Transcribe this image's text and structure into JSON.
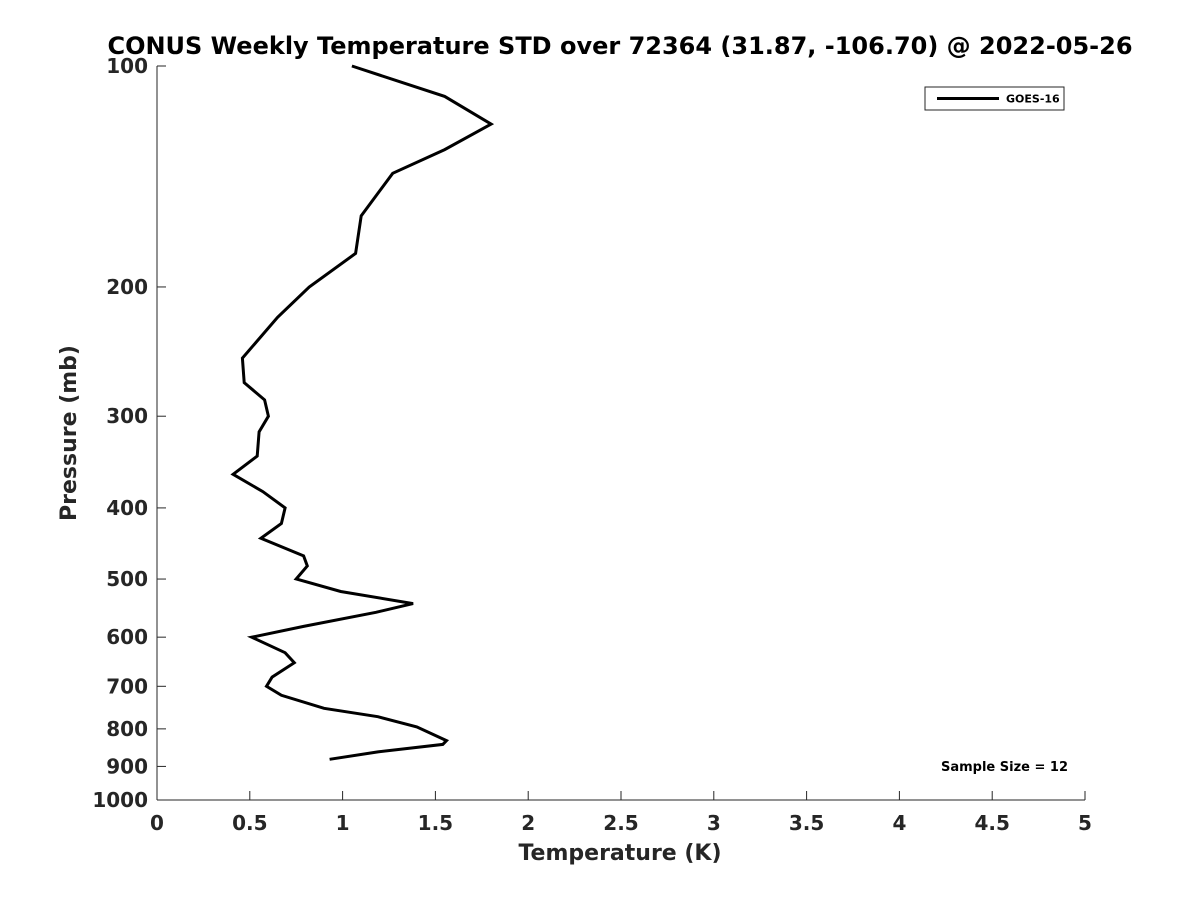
{
  "chart_data": {
    "type": "line",
    "title": "CONUS Weekly Temperature STD over 72364 (31.87, -106.70) @ 2022-05-26",
    "xlabel": "Temperature (K)",
    "ylabel": "Pressure (mb)",
    "xlim": [
      0,
      5
    ],
    "ylim": [
      1000,
      100
    ],
    "yscale": "log",
    "y_reversed": true,
    "grid": false,
    "legend_position": "top-right",
    "x_ticks": [
      0,
      0.5,
      1,
      1.5,
      2,
      2.5,
      3,
      3.5,
      4,
      4.5,
      5
    ],
    "x_tick_labels": [
      "0",
      "0.5",
      "1",
      "1.5",
      "2",
      "2.5",
      "3",
      "3.5",
      "4",
      "4.5",
      "5"
    ],
    "y_ticks": [
      100,
      200,
      300,
      400,
      500,
      600,
      700,
      800,
      900,
      1000
    ],
    "y_tick_labels": [
      "100",
      "200",
      "300",
      "400",
      "500",
      "600",
      "700",
      "800",
      "900",
      "1000"
    ],
    "series": [
      {
        "name": "GOES-16",
        "color": "#000000",
        "points": [
          {
            "x": 1.05,
            "y": 100
          },
          {
            "x": 1.55,
            "y": 110
          },
          {
            "x": 1.8,
            "y": 120
          },
          {
            "x": 1.55,
            "y": 130
          },
          {
            "x": 1.27,
            "y": 140
          },
          {
            "x": 1.1,
            "y": 160
          },
          {
            "x": 1.07,
            "y": 180
          },
          {
            "x": 0.82,
            "y": 200
          },
          {
            "x": 0.65,
            "y": 220
          },
          {
            "x": 0.46,
            "y": 250
          },
          {
            "x": 0.47,
            "y": 270
          },
          {
            "x": 0.58,
            "y": 285
          },
          {
            "x": 0.6,
            "y": 300
          },
          {
            "x": 0.55,
            "y": 315
          },
          {
            "x": 0.54,
            "y": 340
          },
          {
            "x": 0.41,
            "y": 360
          },
          {
            "x": 0.57,
            "y": 380
          },
          {
            "x": 0.69,
            "y": 400
          },
          {
            "x": 0.67,
            "y": 420
          },
          {
            "x": 0.56,
            "y": 440
          },
          {
            "x": 0.79,
            "y": 465
          },
          {
            "x": 0.81,
            "y": 480
          },
          {
            "x": 0.75,
            "y": 500
          },
          {
            "x": 0.99,
            "y": 520
          },
          {
            "x": 1.38,
            "y": 540
          },
          {
            "x": 1.18,
            "y": 555
          },
          {
            "x": 0.79,
            "y": 580
          },
          {
            "x": 0.51,
            "y": 600
          },
          {
            "x": 0.69,
            "y": 630
          },
          {
            "x": 0.74,
            "y": 650
          },
          {
            "x": 0.62,
            "y": 680
          },
          {
            "x": 0.59,
            "y": 700
          },
          {
            "x": 0.67,
            "y": 720
          },
          {
            "x": 0.9,
            "y": 750
          },
          {
            "x": 1.19,
            "y": 770
          },
          {
            "x": 1.4,
            "y": 795
          },
          {
            "x": 1.56,
            "y": 830
          },
          {
            "x": 1.54,
            "y": 840
          },
          {
            "x": 1.19,
            "y": 860
          },
          {
            "x": 0.93,
            "y": 880
          }
        ]
      }
    ],
    "annotations": [
      {
        "text": "Sample Size = 12",
        "position": "bottom-right"
      }
    ]
  }
}
